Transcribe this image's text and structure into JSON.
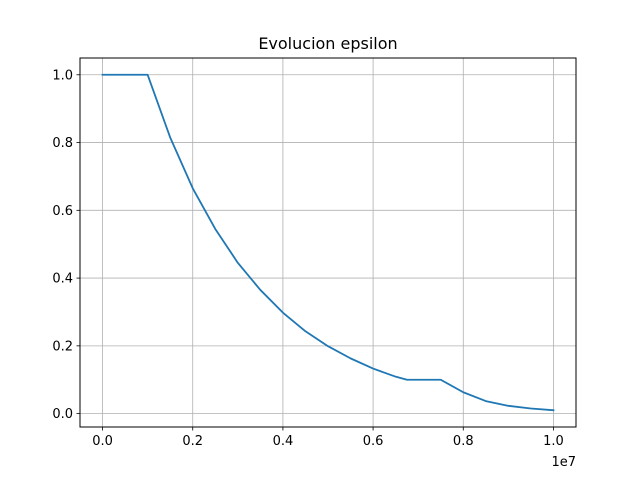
{
  "chart_data": {
    "type": "line",
    "title": "Evolucion epsilon",
    "xlabel": "",
    "ylabel": "",
    "x_offset_label": "1e7",
    "xlim": [
      -0.05,
      1.05
    ],
    "ylim": [
      -0.0395,
      1.0495
    ],
    "grid": true,
    "line_color": "#1f77b4",
    "x_ticks": [
      0.0,
      0.2,
      0.4,
      0.6,
      0.8,
      1.0
    ],
    "x_tick_labels": [
      "0.0",
      "0.2",
      "0.4",
      "0.6",
      "0.8",
      "1.0"
    ],
    "y_ticks": [
      0.0,
      0.2,
      0.4,
      0.6,
      0.8,
      1.0
    ],
    "y_tick_labels": [
      "0.0",
      "0.2",
      "0.4",
      "0.6",
      "0.8",
      "1.0"
    ],
    "series": [
      {
        "x": [
          0.0,
          0.1,
          0.15,
          0.2,
          0.25,
          0.3,
          0.35,
          0.4,
          0.45,
          0.5,
          0.55,
          0.6,
          0.65,
          0.675,
          0.75,
          0.8,
          0.85,
          0.9,
          0.95,
          1.0
        ],
        "y": [
          1.0,
          1.0,
          0.815,
          0.665,
          0.545,
          0.445,
          0.365,
          0.298,
          0.243,
          0.199,
          0.163,
          0.133,
          0.109,
          0.1,
          0.1,
          0.063,
          0.037,
          0.023,
          0.015,
          0.01
        ]
      }
    ]
  }
}
